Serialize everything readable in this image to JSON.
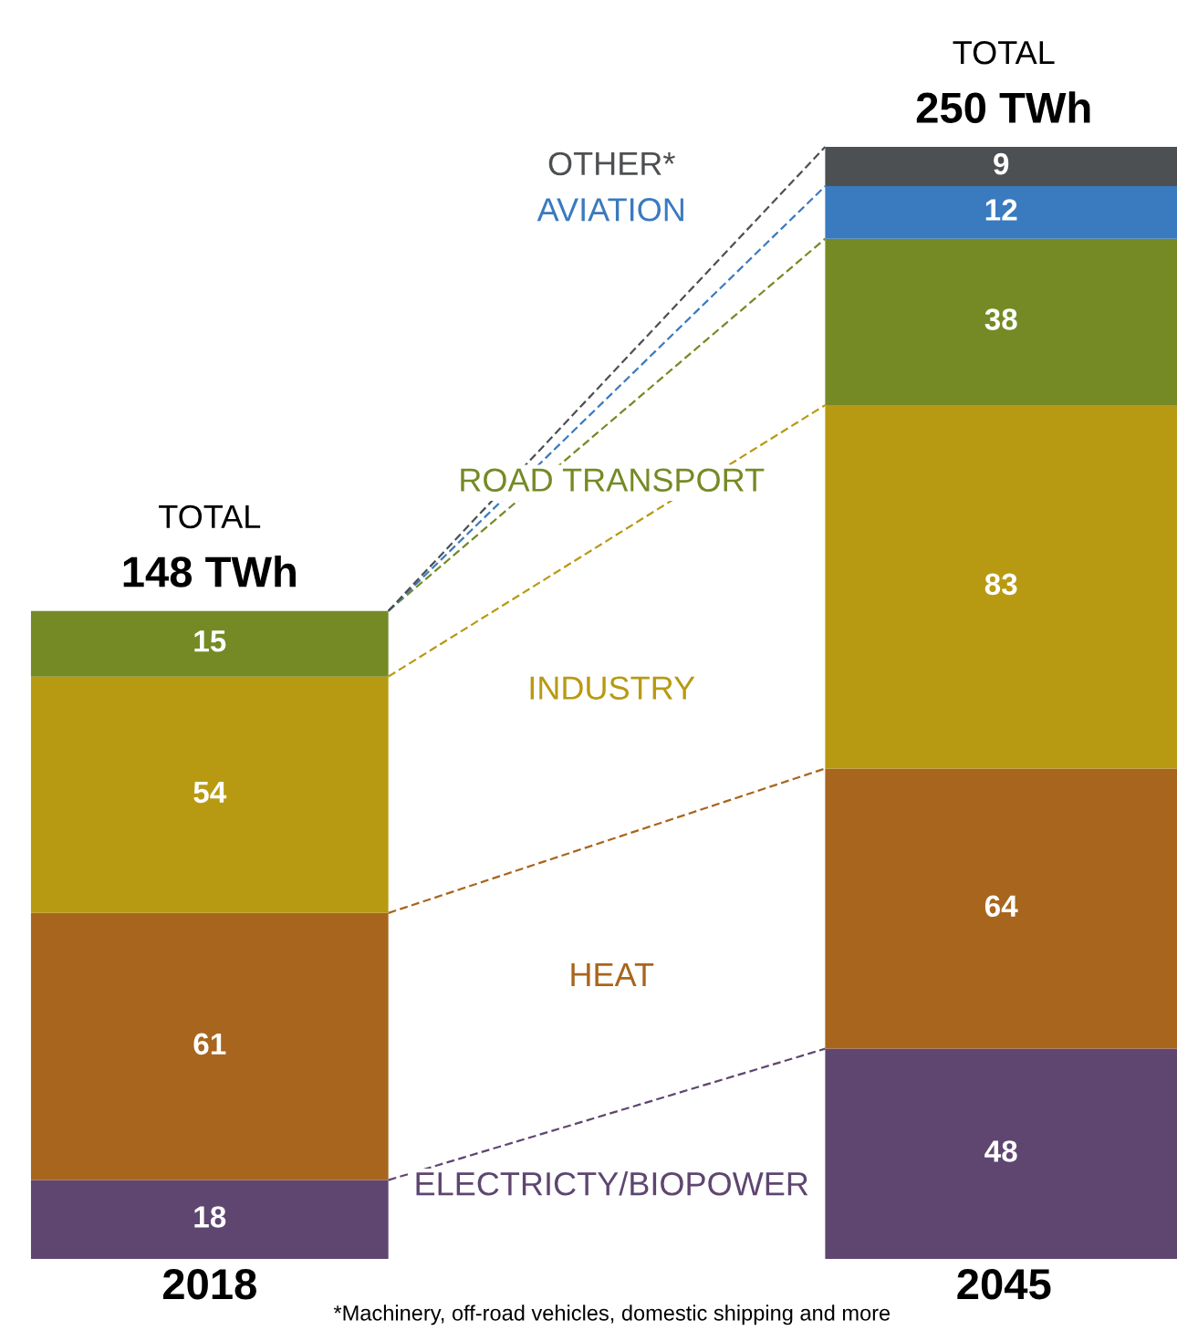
{
  "chart_data": {
    "type": "bar",
    "stacked": true,
    "categories": [
      "2018",
      "2045"
    ],
    "series": [
      {
        "name": "ELECTRICTY/BIOPOWER",
        "color": "#5e4670",
        "values": [
          18,
          48
        ]
      },
      {
        "name": "HEAT",
        "color": "#a8651e",
        "values": [
          61,
          64
        ]
      },
      {
        "name": "INDUSTRY",
        "color": "#b89a12",
        "values": [
          54,
          83
        ]
      },
      {
        "name": "ROAD TRANSPORT",
        "color": "#758a25",
        "values": [
          15,
          38
        ]
      },
      {
        "name": "AVIATION",
        "color": "#3a7abf",
        "values": [
          null,
          12
        ]
      },
      {
        "name": "OTHER*",
        "color": "#4d5052",
        "values": [
          null,
          9
        ]
      }
    ],
    "data_labels": true,
    "totals": [
      "TOTAL\n148 TWh",
      "TOTAL\n250 TWh"
    ],
    "tick_labels": "x",
    "legend": false,
    "grid": false,
    "annotations": [
      "*Machinery, off-road vehicles, domestic shipping and more"
    ]
  }
}
